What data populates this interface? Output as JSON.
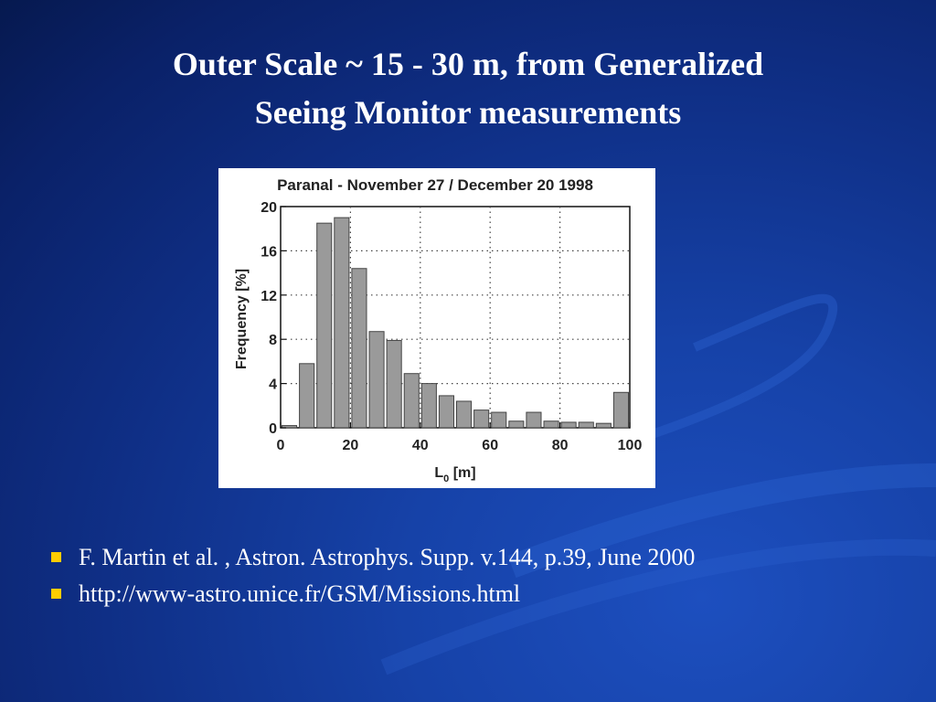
{
  "slide": {
    "title_line1": "Outer Scale ~ 15 - 30 m, from Generalized",
    "title_line2": "Seeing Monitor measurements",
    "bullets": [
      "F. Martin et al. , Astron. Astrophys. Supp. v.144,  p.39, June 2000",
      "http://www-astro.unice.fr/GSM/Missions.html"
    ],
    "colors": {
      "bullet": "#ffcc00",
      "bar_fill": "#9a9a9a",
      "bar_edge": "#444444"
    }
  },
  "chart_data": {
    "type": "bar",
    "title": "Paranal - November 27 / December 20 1998",
    "xlabel": "L",
    "xlabel_sub": "0",
    "xlabel_unit": " [m]",
    "ylabel": "Frequency [%]",
    "xlim": [
      0,
      100
    ],
    "ylim": [
      0,
      20
    ],
    "xticks": [
      "0",
      "20",
      "40",
      "60",
      "80",
      "100"
    ],
    "yticks": [
      "0",
      "4",
      "8",
      "12",
      "16",
      "20"
    ],
    "grid": "dotted",
    "bin_width": 5,
    "x": [
      0,
      5,
      10,
      15,
      20,
      25,
      30,
      35,
      40,
      45,
      50,
      55,
      60,
      65,
      70,
      75,
      80,
      85,
      90,
      95
    ],
    "values": [
      0.2,
      5.8,
      18.5,
      19.0,
      14.4,
      8.7,
      7.9,
      4.9,
      4.0,
      2.9,
      2.4,
      1.6,
      1.4,
      0.6,
      1.4,
      0.6,
      0.5,
      0.5,
      0.4,
      3.2
    ]
  }
}
